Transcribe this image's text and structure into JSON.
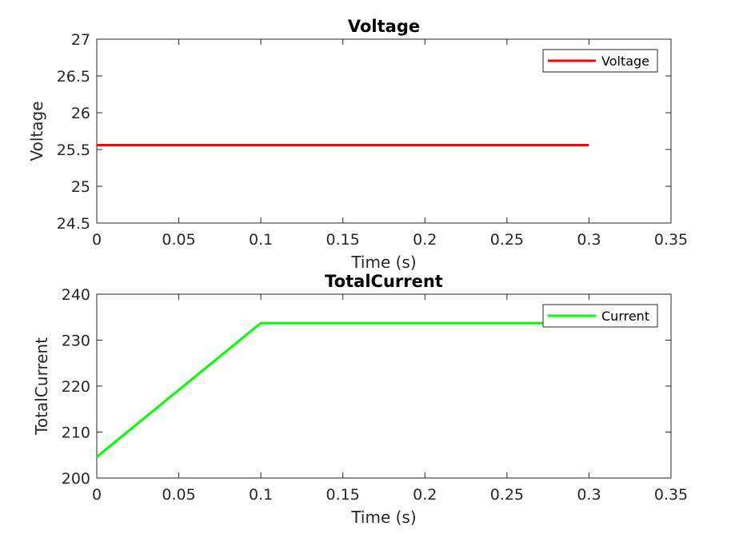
{
  "chart_data": [
    {
      "type": "line",
      "title": "Voltage",
      "xlabel": "Time (s)",
      "ylabel": "Voltage",
      "xlim": [
        0,
        0.35
      ],
      "ylim": [
        24.5,
        27
      ],
      "xticks": [
        0,
        0.05,
        0.1,
        0.15,
        0.2,
        0.25,
        0.3,
        0.35
      ],
      "xtick_labels": [
        "0",
        "0.05",
        "0.1",
        "0.15",
        "0.2",
        "0.25",
        "0.3",
        "0.35"
      ],
      "yticks": [
        24.5,
        25,
        25.5,
        26,
        26.5,
        27
      ],
      "ytick_labels": [
        "24.5",
        "25",
        "25.5",
        "26",
        "26.5",
        "27"
      ],
      "grid": false,
      "legend": "top-right",
      "series": [
        {
          "name": "Voltage",
          "color": "#ff0000",
          "x": [
            0,
            0.3
          ],
          "y": [
            25.56,
            25.56
          ]
        }
      ]
    },
    {
      "type": "line",
      "title": "TotalCurrent",
      "xlabel": "Time (s)",
      "ylabel": "TotalCurrent",
      "xlim": [
        0,
        0.35
      ],
      "ylim": [
        200,
        240
      ],
      "xticks": [
        0,
        0.05,
        0.1,
        0.15,
        0.2,
        0.25,
        0.3,
        0.35
      ],
      "xtick_labels": [
        "0",
        "0.05",
        "0.1",
        "0.15",
        "0.2",
        "0.25",
        "0.3",
        "0.35"
      ],
      "yticks": [
        200,
        210,
        220,
        230,
        240
      ],
      "ytick_labels": [
        "200",
        "210",
        "220",
        "230",
        "240"
      ],
      "grid": false,
      "legend": "top-right",
      "series": [
        {
          "name": "Current",
          "color": "#00ff00",
          "x": [
            0,
            0.1,
            0.3
          ],
          "y": [
            204.6,
            233.7,
            233.7
          ]
        }
      ]
    }
  ]
}
